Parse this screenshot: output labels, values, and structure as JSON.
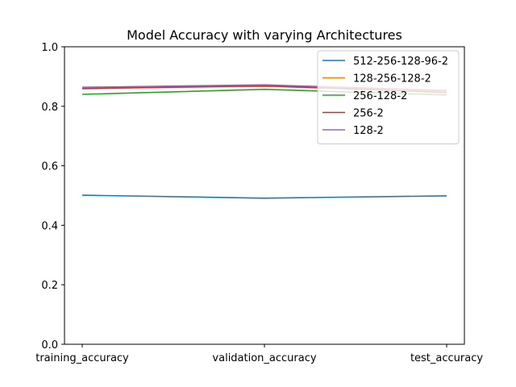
{
  "chart_data": {
    "type": "line",
    "title": "Model Accuracy with varying Architectures",
    "xlabel": "",
    "ylabel": "",
    "categories": [
      "training_accuracy",
      "validation_accuracy",
      "test_accuracy"
    ],
    "ylim": [
      0,
      1.0
    ],
    "yticks": [
      "0.0",
      "0.2",
      "0.4",
      "0.6",
      "0.8",
      "1.0"
    ],
    "grid": false,
    "legend_position": "top-right",
    "series": [
      {
        "name": "512-256-128-96-2",
        "color": "#1f77b4",
        "values": [
          0.501,
          0.491,
          0.499
        ]
      },
      {
        "name": "128-256-128-2",
        "color": "#ff7f0e",
        "values": [
          0.861,
          0.867,
          0.851
        ]
      },
      {
        "name": "256-128-2",
        "color": "#2ca02c",
        "values": [
          0.84,
          0.857,
          0.838
        ]
      },
      {
        "name": "256-2",
        "color": "#d62728",
        "values": [
          0.859,
          0.869,
          0.846
        ]
      },
      {
        "name": "128-2",
        "color": "#9467bd",
        "values": [
          0.864,
          0.872,
          0.853
        ]
      }
    ]
  }
}
